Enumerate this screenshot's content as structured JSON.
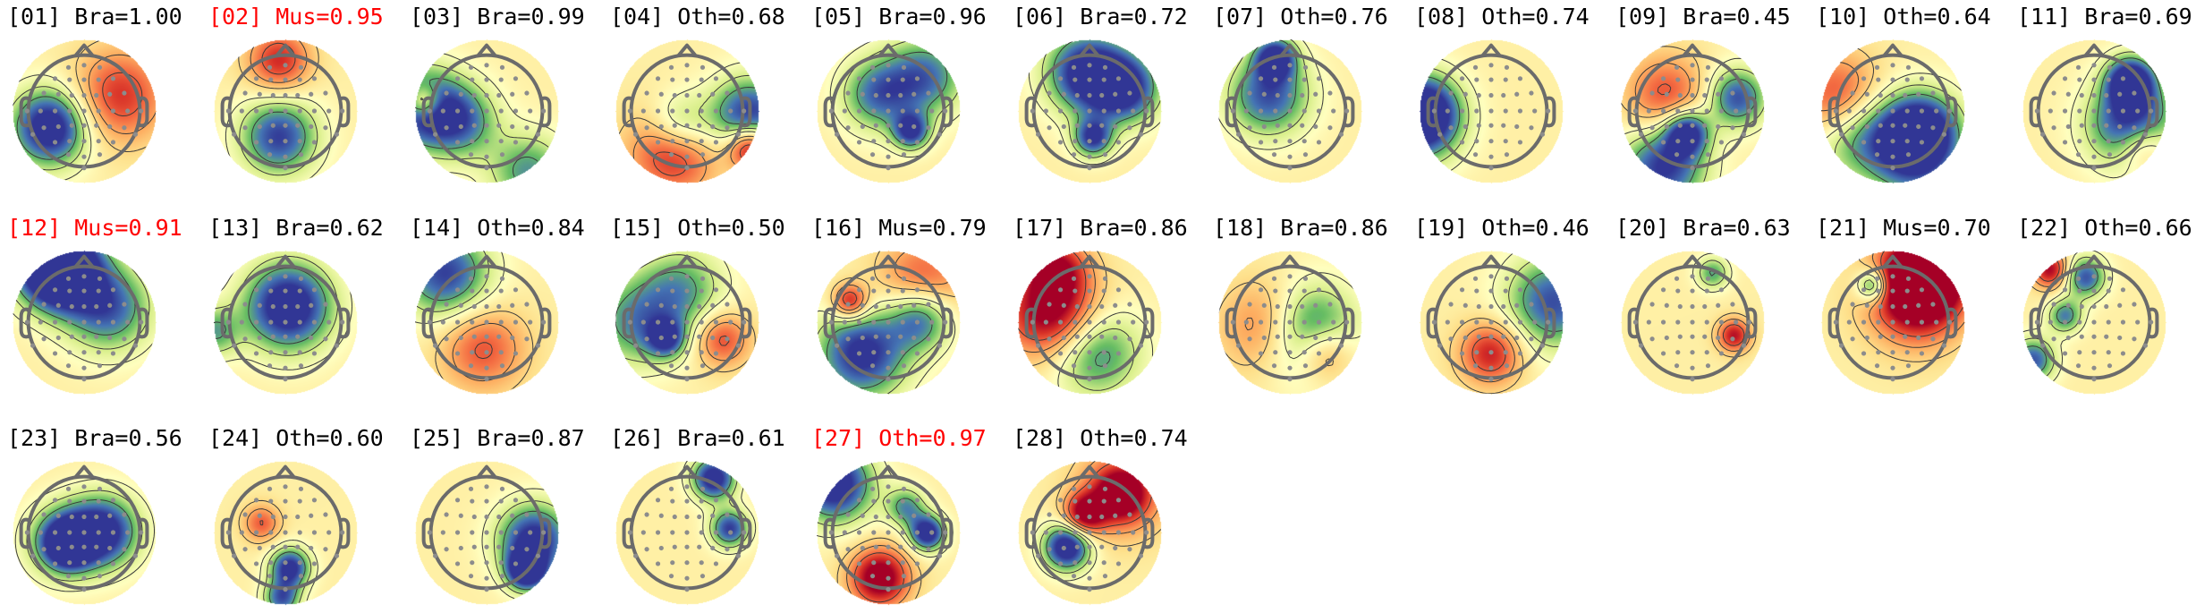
{
  "components": [
    {
      "label": "[01] Bra=1.00",
      "category": "brain",
      "flagged": false
    },
    {
      "label": "[02] Mus=0.95",
      "category": "muscle",
      "flagged": true
    },
    {
      "label": "[03] Bra=0.99",
      "category": "brain",
      "flagged": false
    },
    {
      "label": "[04] Oth=0.68",
      "category": "other",
      "flagged": false
    },
    {
      "label": "[05] Bra=0.96",
      "category": "brain",
      "flagged": false
    },
    {
      "label": "[06] Bra=0.72",
      "category": "brain",
      "flagged": false
    },
    {
      "label": "[07] Oth=0.76",
      "category": "other",
      "flagged": false
    },
    {
      "label": "[08] Oth=0.74",
      "category": "other",
      "flagged": false
    },
    {
      "label": "[09] Bra=0.45",
      "category": "brain",
      "flagged": false
    },
    {
      "label": "[10] Oth=0.64",
      "category": "other",
      "flagged": false
    },
    {
      "label": "[11] Bra=0.69",
      "category": "brain",
      "flagged": false
    },
    {
      "label": "[12] Mus=0.91",
      "category": "muscle",
      "flagged": true
    },
    {
      "label": "[13] Bra=0.62",
      "category": "brain",
      "flagged": false
    },
    {
      "label": "[14] Oth=0.84",
      "category": "other",
      "flagged": false
    },
    {
      "label": "[15] Oth=0.50",
      "category": "other",
      "flagged": false
    },
    {
      "label": "[16] Mus=0.79",
      "category": "muscle",
      "flagged": false
    },
    {
      "label": "[17] Bra=0.86",
      "category": "brain",
      "flagged": false
    },
    {
      "label": "[18] Bra=0.86",
      "category": "brain",
      "flagged": false
    },
    {
      "label": "[19] Oth=0.46",
      "category": "other",
      "flagged": false
    },
    {
      "label": "[20] Bra=0.63",
      "category": "brain",
      "flagged": false
    },
    {
      "label": "[21] Mus=0.70",
      "category": "muscle",
      "flagged": false
    },
    {
      "label": "[22] Oth=0.66",
      "category": "other",
      "flagged": false
    },
    {
      "label": "[23] Bra=0.56",
      "category": "brain",
      "flagged": false
    },
    {
      "label": "[24] Oth=0.60",
      "category": "other",
      "flagged": false
    },
    {
      "label": "[25] Bra=0.87",
      "category": "brain",
      "flagged": false
    },
    {
      "label": "[26] Bra=0.61",
      "category": "brain",
      "flagged": false
    },
    {
      "label": "[27] Oth=0.97",
      "category": "other",
      "flagged": true
    },
    {
      "label": "[28] Oth=0.74",
      "category": "other",
      "flagged": false
    }
  ],
  "colors": {
    "label_normal": "#000000",
    "label_flagged": "#ff0000",
    "head_outline": "#6b6b6b",
    "electrode": "#8c8c8c",
    "contour": "#3a3a3a",
    "colormap": [
      "#313695",
      "#4575b4",
      "#66bd63",
      "#d9ef8b",
      "#ffffbf",
      "#fee08b",
      "#fdae61",
      "#f46d43",
      "#d73027",
      "#a50026"
    ]
  }
}
